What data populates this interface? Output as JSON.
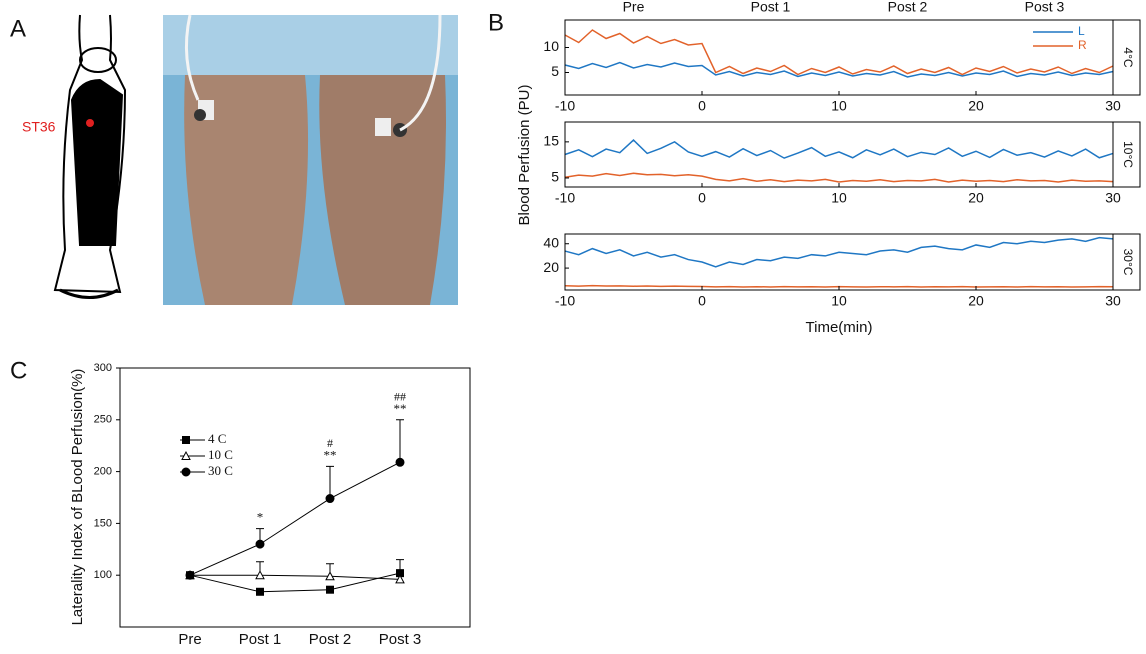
{
  "panel_a": {
    "panel_label": "A",
    "point_label": "ST36"
  },
  "chart_data": [
    {
      "type": "line",
      "panel_label": "B",
      "side_label": "4°C",
      "legend": "upper right",
      "phases": [
        "Pre",
        "Post 1",
        "Post 2",
        "Post 3"
      ],
      "x": [
        -10,
        -9,
        -8,
        -7,
        -6,
        -5,
        -4,
        -3,
        -2,
        -1,
        0,
        1,
        2,
        3,
        4,
        5,
        6,
        7,
        8,
        9,
        10,
        11,
        12,
        13,
        14,
        15,
        16,
        17,
        18,
        19,
        20,
        21,
        22,
        23,
        24,
        25,
        26,
        27,
        28,
        29,
        30
      ],
      "xlim": [
        -10,
        30
      ],
      "xticks": [
        -10,
        0,
        10,
        20,
        30
      ],
      "ylim": [
        0.5,
        15.5
      ],
      "yticks": [
        5,
        10
      ],
      "series": [
        {
          "name": "L",
          "color": "#1f77c4",
          "values": [
            6.5,
            5.8,
            6.8,
            6.0,
            7.0,
            5.9,
            6.6,
            6.1,
            6.9,
            6.2,
            6.4,
            4.5,
            5.2,
            4.3,
            5.0,
            4.6,
            5.3,
            4.2,
            4.9,
            4.4,
            5.1,
            4.3,
            4.8,
            4.5,
            5.2,
            4.1,
            4.7,
            4.4,
            5.0,
            4.3,
            4.9,
            4.6,
            5.3,
            4.2,
            4.8,
            4.5,
            5.1,
            4.4,
            4.9,
            4.6,
            5.2
          ]
        },
        {
          "name": "R",
          "color": "#e2622a",
          "values": [
            12.5,
            11.0,
            13.5,
            11.8,
            12.8,
            10.9,
            12.2,
            10.8,
            11.6,
            10.5,
            10.8,
            5.0,
            6.2,
            4.8,
            5.9,
            5.2,
            6.4,
            4.6,
            5.8,
            5.0,
            6.1,
            4.7,
            5.6,
            5.1,
            6.3,
            4.8,
            5.7,
            5.0,
            6.0,
            4.6,
            5.9,
            5.2,
            6.2,
            4.9,
            5.7,
            5.1,
            6.1,
            4.8,
            5.8,
            5.0,
            6.3
          ]
        }
      ]
    },
    {
      "type": "line",
      "side_label": "10°C",
      "ylabel": "Blood Perfusion (PU)",
      "x": [
        -10,
        -9,
        -8,
        -7,
        -6,
        -5,
        -4,
        -3,
        -2,
        -1,
        0,
        1,
        2,
        3,
        4,
        5,
        6,
        7,
        8,
        9,
        10,
        11,
        12,
        13,
        14,
        15,
        16,
        17,
        18,
        19,
        20,
        21,
        22,
        23,
        24,
        25,
        26,
        27,
        28,
        29,
        30
      ],
      "xlim": [
        -10,
        30
      ],
      "xticks": [
        -10,
        0,
        10,
        20,
        30
      ],
      "ylim": [
        2.5,
        20.5
      ],
      "yticks": [
        5,
        15
      ],
      "series": [
        {
          "color": "#1f77c4",
          "values": [
            11.5,
            12.8,
            10.9,
            13.0,
            12.0,
            15.5,
            11.8,
            13.2,
            15.0,
            12.2,
            11.0,
            12.3,
            10.8,
            13.1,
            11.2,
            12.6,
            10.5,
            11.9,
            13.4,
            11.0,
            12.2,
            10.6,
            12.8,
            11.4,
            13.0,
            10.9,
            12.1,
            11.5,
            13.3,
            11.0,
            12.4,
            10.7,
            12.9,
            11.3,
            12.0,
            10.8,
            12.5,
            11.1,
            13.0,
            10.6,
            11.8
          ]
        },
        {
          "color": "#e2622a",
          "values": [
            5.2,
            5.8,
            5.5,
            6.2,
            5.7,
            6.3,
            5.9,
            6.0,
            5.6,
            5.9,
            5.5,
            4.6,
            4.2,
            4.8,
            4.1,
            4.5,
            4.0,
            4.4,
            4.2,
            4.6,
            3.9,
            4.3,
            4.1,
            4.5,
            4.0,
            4.3,
            4.2,
            4.6,
            3.9,
            4.4,
            4.1,
            4.3,
            4.0,
            4.5,
            4.2,
            4.3,
            3.9,
            4.4,
            4.1,
            4.2,
            4.0
          ]
        }
      ]
    },
    {
      "type": "line",
      "side_label": "30°C",
      "xlabel": "Time(min)",
      "x": [
        -10,
        -9,
        -8,
        -7,
        -6,
        -5,
        -4,
        -3,
        -2,
        -1,
        0,
        1,
        2,
        3,
        4,
        5,
        6,
        7,
        8,
        9,
        10,
        11,
        12,
        13,
        14,
        15,
        16,
        17,
        18,
        19,
        20,
        21,
        22,
        23,
        24,
        25,
        26,
        27,
        28,
        29,
        30
      ],
      "xlim": [
        -10,
        30
      ],
      "xticks": [
        -10,
        0,
        10,
        20,
        30
      ],
      "ylim": [
        2,
        48
      ],
      "yticks": [
        20,
        40
      ],
      "series": [
        {
          "color": "#1f77c4",
          "values": [
            34,
            31,
            36,
            32,
            35,
            30,
            33,
            29,
            31,
            27,
            25,
            21,
            25,
            23,
            27,
            26,
            29,
            28,
            31,
            30,
            33,
            32,
            31,
            34,
            35,
            33,
            37,
            38,
            36,
            35,
            39,
            37,
            41,
            40,
            42,
            41,
            43,
            44,
            42,
            45,
            44
          ]
        },
        {
          "color": "#e2622a",
          "values": [
            5.5,
            5.2,
            5.6,
            5.3,
            5.4,
            5.1,
            5.3,
            5.0,
            5.2,
            5.0,
            4.9,
            4.6,
            4.8,
            4.5,
            4.7,
            4.5,
            4.8,
            4.6,
            4.7,
            4.5,
            4.8,
            4.6,
            4.5,
            4.7,
            4.6,
            4.8,
            4.5,
            4.7,
            4.6,
            4.8,
            4.5,
            4.6,
            4.7,
            4.5,
            4.8,
            4.6,
            4.7,
            4.5,
            4.6,
            4.8,
            4.7
          ]
        }
      ]
    },
    {
      "type": "errorline",
      "panel_label": "C",
      "ylabel": "Laterality Index of BLood Perfusion(%)",
      "categories": [
        "Pre",
        "Post 1",
        "Post 2",
        "Post 3"
      ],
      "ylim": [
        50,
        300
      ],
      "yticks": [
        100,
        150,
        200,
        250,
        300
      ],
      "legend": "upper left",
      "series": [
        {
          "name": "4 C",
          "color": "#000000",
          "marker": "square",
          "filled": true,
          "values": [
            100,
            84,
            86,
            102
          ],
          "errors": [
            0,
            0,
            0,
            13
          ]
        },
        {
          "name": "10 C",
          "color": "#000000",
          "marker": "triangle",
          "filled": false,
          "values": [
            100,
            100,
            99,
            96
          ],
          "errors": [
            0,
            13,
            12,
            0
          ]
        },
        {
          "name": "30 C",
          "color": "#000000",
          "marker": "circle",
          "filled": true,
          "values": [
            100,
            130,
            174,
            209
          ],
          "errors": [
            0,
            15,
            31,
            41
          ]
        }
      ],
      "star_labels": [
        null,
        "*",
        "**",
        "**"
      ],
      "hash_labels": [
        null,
        null,
        "#",
        "##"
      ]
    }
  ]
}
